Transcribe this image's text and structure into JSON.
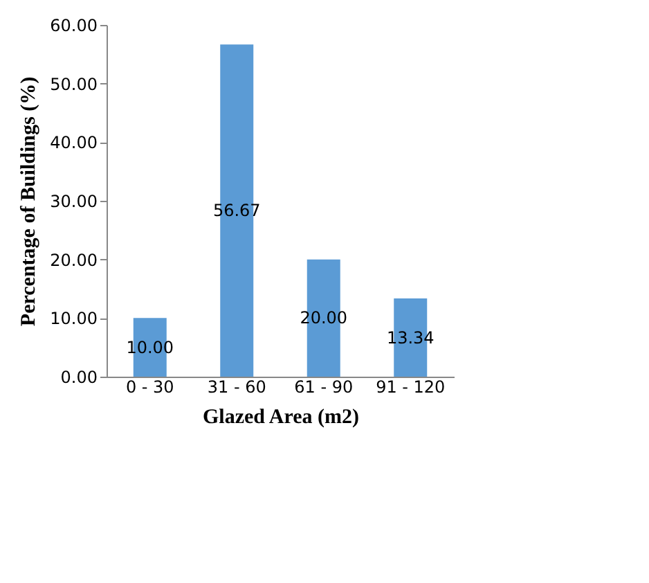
{
  "chart_data": {
    "type": "bar",
    "xlabel": "Glazed Area (m2)",
    "ylabel": "Percentage of Buildings (%)",
    "categories": [
      "0 - 30",
      "31 - 60",
      "61 - 90",
      "91 - 120"
    ],
    "values": [
      10.0,
      56.67,
      20.0,
      13.34
    ],
    "color": "#5b9bd5",
    "ylim": [
      0,
      60
    ],
    "yticks": [
      {
        "value": 0,
        "label": "0.00"
      },
      {
        "value": 10,
        "label": "10.00"
      },
      {
        "value": 20,
        "label": "20.00"
      },
      {
        "value": 30,
        "label": "30.00"
      },
      {
        "value": 40,
        "label": "40.00"
      },
      {
        "value": 50,
        "label": "50.00"
      },
      {
        "value": 60,
        "label": "60.00"
      }
    ],
    "value_labels": [
      "10.00",
      "56.67",
      "20.00",
      "13.34"
    ],
    "grid": false
  }
}
